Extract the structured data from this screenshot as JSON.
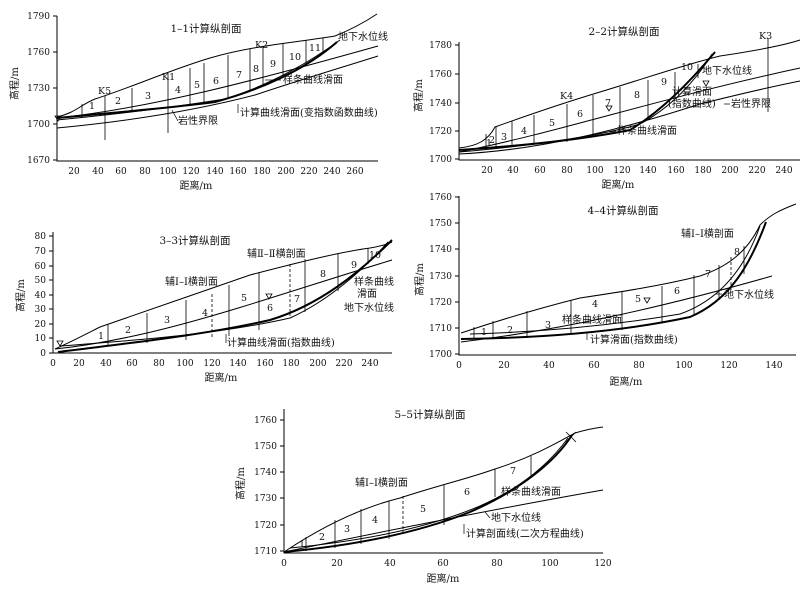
{
  "figure": {
    "panels": [
      {
        "id": "p1",
        "title": "1–1计算纵剖面",
        "xlabel": "距离/m",
        "ylabel": "高程/m",
        "xticks": [
          "20",
          "40",
          "60",
          "80",
          "100",
          "120",
          "140",
          "160",
          "180",
          "200",
          "220",
          "240",
          "260"
        ],
        "yticks": [
          "1670",
          "1700",
          "1730",
          "1760",
          "1790"
        ],
        "slices": [
          "1",
          "2",
          "3",
          "4",
          "5",
          "6",
          "7",
          "8",
          "9",
          "10",
          "11"
        ],
        "boreholes": [
          "K5",
          "K1",
          "K2"
        ],
        "labels": {
          "water": "地下水位线",
          "spline": "样条曲线滑面",
          "rock": "岩性界限",
          "calc": "计算曲线滑面(变指数函数曲线)"
        }
      },
      {
        "id": "p2",
        "title": "2–2计算纵剖面",
        "xlabel": "距离/m",
        "ylabel": "高程/m",
        "xticks": [
          "20",
          "40",
          "60",
          "80",
          "100",
          "120",
          "140",
          "160",
          "180",
          "200",
          "220",
          "240"
        ],
        "yticks": [
          "1700",
          "1720",
          "1740",
          "1760",
          "1780"
        ],
        "slices": [
          "1",
          "2",
          "3",
          "4",
          "5",
          "6",
          "7",
          "8",
          "9",
          "10"
        ],
        "boreholes": [
          "K4",
          "K3"
        ],
        "labels": {
          "water": "地下水位线",
          "calc1": "计算滑面",
          "calc2": "(指数曲线)",
          "rock": "岩性界限",
          "spline": "样条曲线滑面"
        }
      },
      {
        "id": "p3",
        "title": "3–3计算纵剖面",
        "xlabel": "距离/m",
        "ylabel": "高程/m",
        "xticks": [
          "0",
          "20",
          "40",
          "60",
          "80",
          "100",
          "120",
          "140",
          "160",
          "180",
          "200",
          "220",
          "240"
        ],
        "yticks": [
          "0",
          "10",
          "20",
          "30",
          "40",
          "50",
          "60",
          "70",
          "80"
        ],
        "slices": [
          "1",
          "2",
          "3",
          "4",
          "5",
          "6",
          "7",
          "8",
          "9",
          "10"
        ],
        "labels": {
          "aux2": "辅Ⅱ–Ⅱ横剖面",
          "aux1": "辅Ⅰ–Ⅰ横剖面",
          "spline1": "样条曲线",
          "spline2": "滑面",
          "water": "地下水位线",
          "calc": "计算曲线滑面(指数曲线)"
        }
      },
      {
        "id": "p4",
        "title": "4–4计算纵剖面",
        "xlabel": "距离/m",
        "ylabel": "高程/m",
        "xticks": [
          "0",
          "20",
          "40",
          "60",
          "80",
          "100",
          "120",
          "140"
        ],
        "yticks": [
          "1700",
          "1710",
          "1720",
          "1730",
          "1740",
          "1750",
          "1760"
        ],
        "slices": [
          "1",
          "2",
          "3",
          "4",
          "5",
          "6",
          "7",
          "8"
        ],
        "labels": {
          "aux1": "辅Ⅰ–Ⅰ横剖面",
          "water": "地下水位线",
          "spline": "样条曲线滑面",
          "calc": "计算滑面(指数曲线)"
        }
      },
      {
        "id": "p5",
        "title": "5–5计算纵剖面",
        "xlabel": "距离/m",
        "ylabel": "高程/m",
        "xticks": [
          "0",
          "20",
          "40",
          "60",
          "80",
          "100",
          "120"
        ],
        "yticks": [
          "1710",
          "1720",
          "1730",
          "1740",
          "1750",
          "1760"
        ],
        "slices": [
          "1",
          "2",
          "3",
          "4",
          "5",
          "6",
          "7"
        ],
        "labels": {
          "aux1": "辅Ⅰ–Ⅰ横剖面",
          "spline": "样条曲线滑面",
          "water": "地下水位线",
          "calc": "计算剖面线(二次方程曲线)"
        }
      }
    ]
  }
}
